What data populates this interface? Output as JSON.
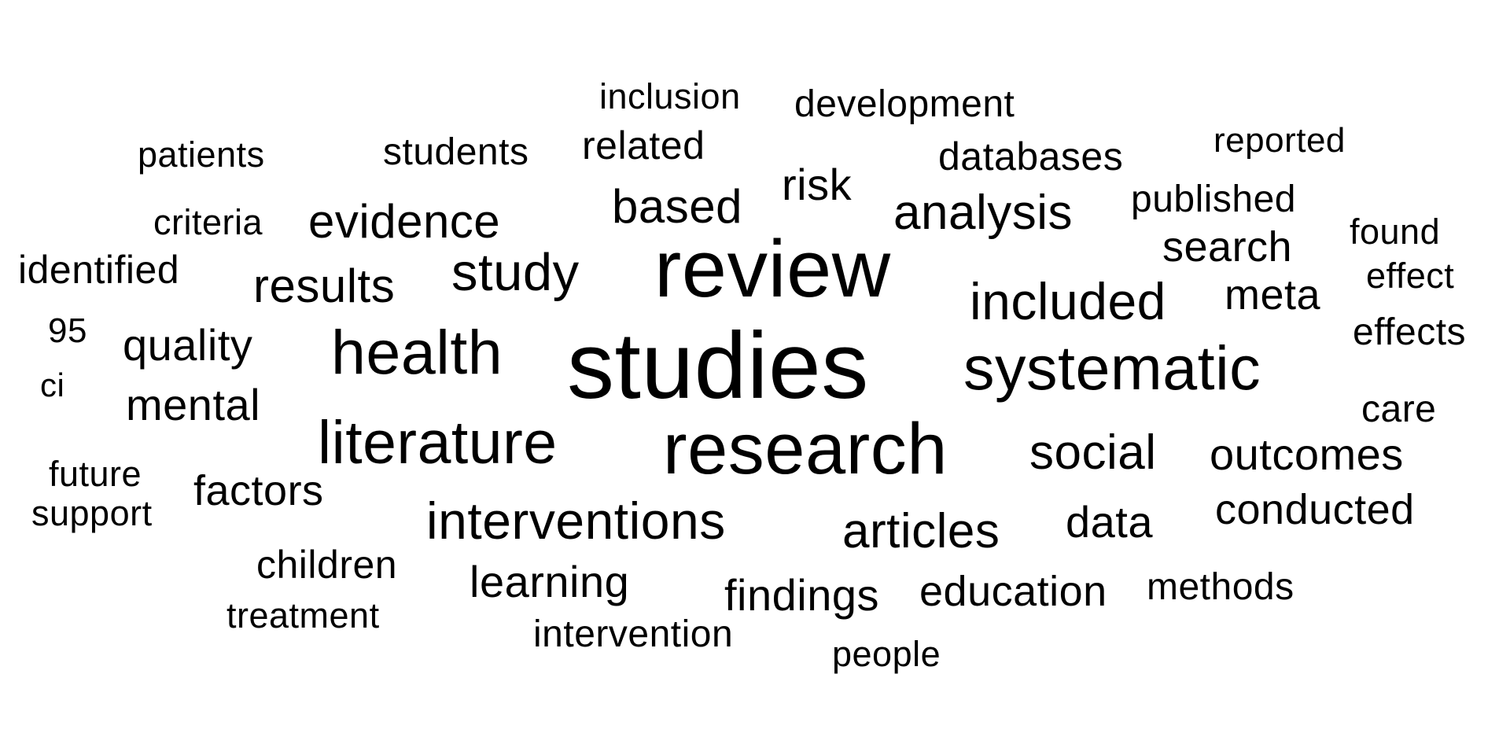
{
  "word_cloud": {
    "text_color": "#000000",
    "background_color": "#ffffff",
    "words": [
      {
        "text": "studies",
        "weight": 100
      },
      {
        "text": "review",
        "weight": 86
      },
      {
        "text": "research",
        "weight": 77
      },
      {
        "text": "health",
        "weight": 66
      },
      {
        "text": "systematic",
        "weight": 66
      },
      {
        "text": "literature",
        "weight": 64
      },
      {
        "text": "study",
        "weight": 56
      },
      {
        "text": "interventions",
        "weight": 55
      },
      {
        "text": "included",
        "weight": 55
      },
      {
        "text": "social",
        "weight": 52
      },
      {
        "text": "analysis",
        "weight": 52
      },
      {
        "text": "articles",
        "weight": 52
      },
      {
        "text": "results",
        "weight": 50
      },
      {
        "text": "based",
        "weight": 50
      },
      {
        "text": "evidence",
        "weight": 50
      },
      {
        "text": "outcomes",
        "weight": 47
      },
      {
        "text": "quality",
        "weight": 47
      },
      {
        "text": "mental",
        "weight": 47
      },
      {
        "text": "data",
        "weight": 47
      },
      {
        "text": "learning",
        "weight": 47
      },
      {
        "text": "findings",
        "weight": 47
      },
      {
        "text": "risk",
        "weight": 47
      },
      {
        "text": "meta",
        "weight": 45
      },
      {
        "text": "search",
        "weight": 45
      },
      {
        "text": "conducted",
        "weight": 45
      },
      {
        "text": "factors",
        "weight": 45
      },
      {
        "text": "education",
        "weight": 45
      },
      {
        "text": "databases",
        "weight": 42
      },
      {
        "text": "related",
        "weight": 42
      },
      {
        "text": "identified",
        "weight": 42
      },
      {
        "text": "children",
        "weight": 42
      },
      {
        "text": "methods",
        "weight": 40
      },
      {
        "text": "effects",
        "weight": 40
      },
      {
        "text": "intervention",
        "weight": 40
      },
      {
        "text": "care",
        "weight": 40
      },
      {
        "text": "published",
        "weight": 40
      },
      {
        "text": "students",
        "weight": 40
      },
      {
        "text": "development",
        "weight": 40
      },
      {
        "text": "found",
        "weight": 38
      },
      {
        "text": "future",
        "weight": 38
      },
      {
        "text": "treatment",
        "weight": 38
      },
      {
        "text": "criteria",
        "weight": 38
      },
      {
        "text": "people",
        "weight": 38
      },
      {
        "text": "support",
        "weight": 38
      },
      {
        "text": "inclusion",
        "weight": 38
      },
      {
        "text": "patients",
        "weight": 38
      },
      {
        "text": "effect",
        "weight": 38
      },
      {
        "text": "reported",
        "weight": 37
      },
      {
        "text": "95",
        "weight": 37
      },
      {
        "text": "ci",
        "weight": 35
      }
    ]
  }
}
